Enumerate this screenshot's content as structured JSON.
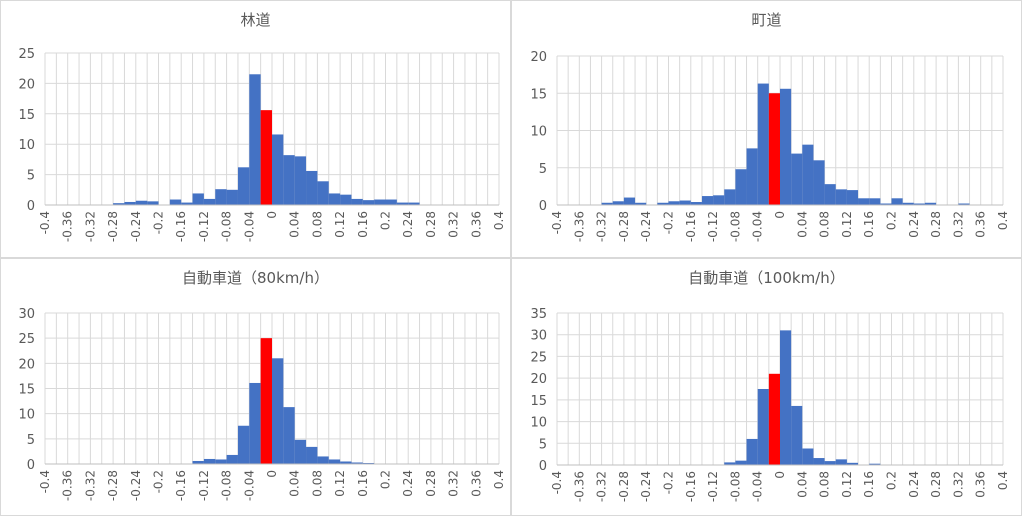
{
  "chart_data": [
    {
      "type": "bar",
      "title": "林道",
      "ylim": [
        0,
        25
      ],
      "yticks": [
        0,
        5,
        10,
        15,
        20,
        25
      ],
      "xtick_labels": [
        "-0.4",
        "-0.36",
        "-0.32",
        "-0.28",
        "-0.24",
        "-0.2",
        "-0.16",
        "-0.12",
        "-0.08",
        "-0.04",
        "0",
        "0.04",
        "0.08",
        "0.12",
        "0.16",
        "0.2",
        "0.24",
        "0.28",
        "0.32",
        "0.36",
        "0.4"
      ],
      "grid": true,
      "highlight_color": "#ff0000",
      "bar_color": "#4472c4",
      "bins": [
        {
          "x": -0.28,
          "v": 0.3
        },
        {
          "x": -0.26,
          "v": 0.5
        },
        {
          "x": -0.24,
          "v": 0.7
        },
        {
          "x": -0.22,
          "v": 0.6
        },
        {
          "x": -0.18,
          "v": 0.9
        },
        {
          "x": -0.16,
          "v": 0.4
        },
        {
          "x": -0.14,
          "v": 1.9
        },
        {
          "x": -0.12,
          "v": 1.0
        },
        {
          "x": -0.1,
          "v": 2.6
        },
        {
          "x": -0.08,
          "v": 2.5
        },
        {
          "x": -0.06,
          "v": 6.2
        },
        {
          "x": -0.04,
          "v": 21.5
        },
        {
          "x": -0.02,
          "v": 15.6,
          "highlight": true
        },
        {
          "x": 0.0,
          "v": 11.6
        },
        {
          "x": 0.02,
          "v": 8.2
        },
        {
          "x": 0.04,
          "v": 8.0
        },
        {
          "x": 0.06,
          "v": 5.6
        },
        {
          "x": 0.08,
          "v": 3.9
        },
        {
          "x": 0.1,
          "v": 1.9
        },
        {
          "x": 0.12,
          "v": 1.7
        },
        {
          "x": 0.14,
          "v": 1.0
        },
        {
          "x": 0.16,
          "v": 0.8
        },
        {
          "x": 0.18,
          "v": 0.9
        },
        {
          "x": 0.2,
          "v": 0.9
        },
        {
          "x": 0.22,
          "v": 0.4
        },
        {
          "x": 0.24,
          "v": 0.4
        }
      ]
    },
    {
      "type": "bar",
      "title": "町道",
      "ylim": [
        0,
        20
      ],
      "yticks": [
        0,
        5,
        10,
        15,
        20
      ],
      "xtick_labels": [
        "-0.4",
        "-0.36",
        "-0.32",
        "-0.28",
        "-0.24",
        "-0.2",
        "-0.16",
        "-0.12",
        "-0.08",
        "-0.04",
        "0",
        "0.04",
        "0.08",
        "0.12",
        "0.16",
        "0.2",
        "0.24",
        "0.28",
        "0.32",
        "0.36",
        "0.4"
      ],
      "grid": true,
      "highlight_color": "#ff0000",
      "bar_color": "#4472c4",
      "bins": [
        {
          "x": -0.32,
          "v": 0.3
        },
        {
          "x": -0.3,
          "v": 0.5
        },
        {
          "x": -0.28,
          "v": 1.0
        },
        {
          "x": -0.26,
          "v": 0.3
        },
        {
          "x": -0.22,
          "v": 0.3
        },
        {
          "x": -0.2,
          "v": 0.5
        },
        {
          "x": -0.18,
          "v": 0.6
        },
        {
          "x": -0.16,
          "v": 0.4
        },
        {
          "x": -0.14,
          "v": 1.2
        },
        {
          "x": -0.12,
          "v": 1.3
        },
        {
          "x": -0.1,
          "v": 2.1
        },
        {
          "x": -0.08,
          "v": 4.8
        },
        {
          "x": -0.06,
          "v": 7.6
        },
        {
          "x": -0.04,
          "v": 16.3
        },
        {
          "x": -0.02,
          "v": 15.0,
          "highlight": true
        },
        {
          "x": 0.0,
          "v": 15.6
        },
        {
          "x": 0.02,
          "v": 6.9
        },
        {
          "x": 0.04,
          "v": 8.1
        },
        {
          "x": 0.06,
          "v": 6.0
        },
        {
          "x": 0.08,
          "v": 2.8
        },
        {
          "x": 0.1,
          "v": 2.1
        },
        {
          "x": 0.12,
          "v": 2.0
        },
        {
          "x": 0.14,
          "v": 0.9
        },
        {
          "x": 0.16,
          "v": 0.9
        },
        {
          "x": 0.18,
          "v": 0.2
        },
        {
          "x": 0.2,
          "v": 0.9
        },
        {
          "x": 0.22,
          "v": 0.3
        },
        {
          "x": 0.24,
          "v": 0.2
        },
        {
          "x": 0.26,
          "v": 0.3
        },
        {
          "x": 0.32,
          "v": 0.2
        }
      ]
    },
    {
      "type": "bar",
      "title": "自動車道（80km/h）",
      "ylim": [
        0,
        30
      ],
      "yticks": [
        0,
        5,
        10,
        15,
        20,
        25,
        30
      ],
      "xtick_labels": [
        "-0.4",
        "-0.36",
        "-0.32",
        "-0.28",
        "-0.24",
        "-0.2",
        "-0.16",
        "-0.12",
        "-0.08",
        "-0.04",
        "0",
        "0.04",
        "0.08",
        "0.12",
        "0.16",
        "0.2",
        "0.24",
        "0.28",
        "0.32",
        "0.36",
        "0.4"
      ],
      "grid": true,
      "highlight_color": "#ff0000",
      "bar_color": "#4472c4",
      "bins": [
        {
          "x": -0.14,
          "v": 0.6
        },
        {
          "x": -0.12,
          "v": 1.0
        },
        {
          "x": -0.1,
          "v": 0.9
        },
        {
          "x": -0.08,
          "v": 1.8
        },
        {
          "x": -0.06,
          "v": 7.6
        },
        {
          "x": -0.04,
          "v": 16.1
        },
        {
          "x": -0.02,
          "v": 25.0,
          "highlight": true
        },
        {
          "x": 0.0,
          "v": 21.0
        },
        {
          "x": 0.02,
          "v": 11.3
        },
        {
          "x": 0.04,
          "v": 4.8
        },
        {
          "x": 0.06,
          "v": 3.4
        },
        {
          "x": 0.08,
          "v": 1.5
        },
        {
          "x": 0.1,
          "v": 0.9
        },
        {
          "x": 0.12,
          "v": 0.5
        },
        {
          "x": 0.14,
          "v": 0.3
        },
        {
          "x": 0.16,
          "v": 0.2
        }
      ]
    },
    {
      "type": "bar",
      "title": "自動車道（100km/h）",
      "ylim": [
        0,
        35
      ],
      "yticks": [
        0,
        5,
        10,
        15,
        20,
        25,
        30,
        35
      ],
      "xtick_labels": [
        "-0.4",
        "-0.36",
        "-0.32",
        "-0.28",
        "-0.24",
        "-0.2",
        "-0.16",
        "-0.12",
        "-0.08",
        "-0.04",
        "0",
        "0.04",
        "0.08",
        "0.12",
        "0.16",
        "0.2",
        "0.24",
        "0.28",
        "0.32",
        "0.36",
        "0.4"
      ],
      "grid": true,
      "highlight_color": "#ff0000",
      "bar_color": "#4472c4",
      "bins": [
        {
          "x": -0.1,
          "v": 0.6
        },
        {
          "x": -0.08,
          "v": 1.0
        },
        {
          "x": -0.06,
          "v": 6.0
        },
        {
          "x": -0.04,
          "v": 17.5
        },
        {
          "x": -0.02,
          "v": 21.0,
          "highlight": true
        },
        {
          "x": 0.0,
          "v": 31.0
        },
        {
          "x": 0.02,
          "v": 13.6
        },
        {
          "x": 0.04,
          "v": 3.8
        },
        {
          "x": 0.06,
          "v": 1.6
        },
        {
          "x": 0.08,
          "v": 0.9
        },
        {
          "x": 0.1,
          "v": 1.3
        },
        {
          "x": 0.12,
          "v": 0.5
        },
        {
          "x": 0.16,
          "v": 0.3
        }
      ]
    }
  ]
}
